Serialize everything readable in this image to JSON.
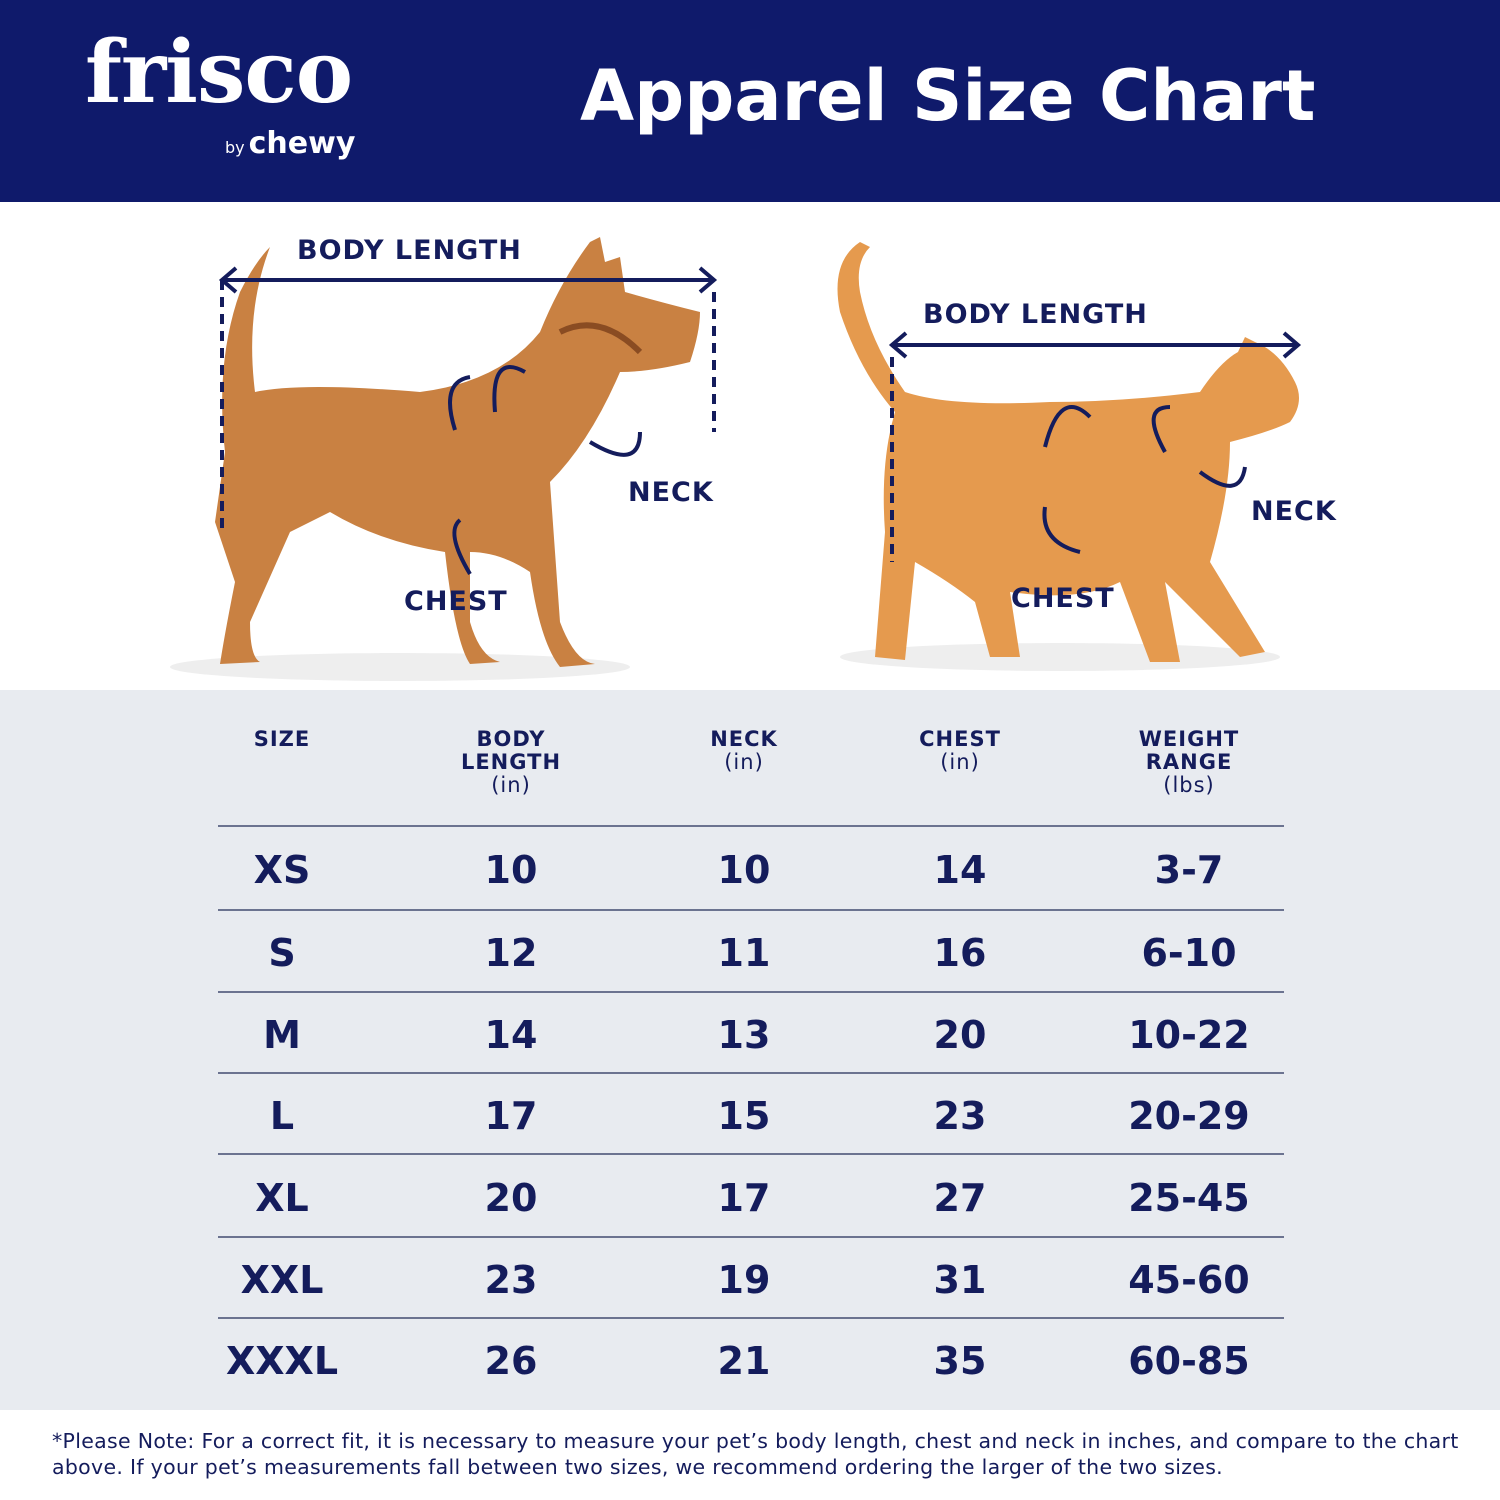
{
  "header": {
    "brand": "frisco",
    "brand_sub_by": "by",
    "brand_sub": "chewy",
    "title": "Apparel Size Chart",
    "bg_color": "#0f1a6b"
  },
  "diagram": {
    "dog": {
      "body_length": "BODY LENGTH",
      "neck": "NECK",
      "chest": "CHEST"
    },
    "cat": {
      "body_length": "BODY LENGTH",
      "neck": "NECK",
      "chest": "CHEST"
    }
  },
  "table": {
    "headers": [
      {
        "label": "SIZE",
        "unit": ""
      },
      {
        "label": "BODY LENGTH",
        "unit": "(in)"
      },
      {
        "label": "NECK",
        "unit": "(in)"
      },
      {
        "label": "CHEST",
        "unit": "(in)"
      },
      {
        "label": "WEIGHT RANGE",
        "unit": "(lbs)"
      }
    ],
    "rows": [
      [
        "XS",
        "10",
        "10",
        "14",
        "3-7"
      ],
      [
        "S",
        "12",
        "11",
        "16",
        "6-10"
      ],
      [
        "M",
        "14",
        "13",
        "20",
        "10-22"
      ],
      [
        "L",
        "17",
        "15",
        "23",
        "20-29"
      ],
      [
        "XL",
        "20",
        "17",
        "27",
        "25-45"
      ],
      [
        "XXL",
        "23",
        "19",
        "31",
        "45-60"
      ],
      [
        "XXXL",
        "26",
        "21",
        "35",
        "60-85"
      ]
    ]
  },
  "footer": {
    "note": "*Please Note: For a correct fit, it is necessary to measure your pet’s body length, chest and neck in inches, and compare to the chart above. If your pet’s measurements fall between two sizes, we recommend ordering the larger of the two sizes."
  }
}
